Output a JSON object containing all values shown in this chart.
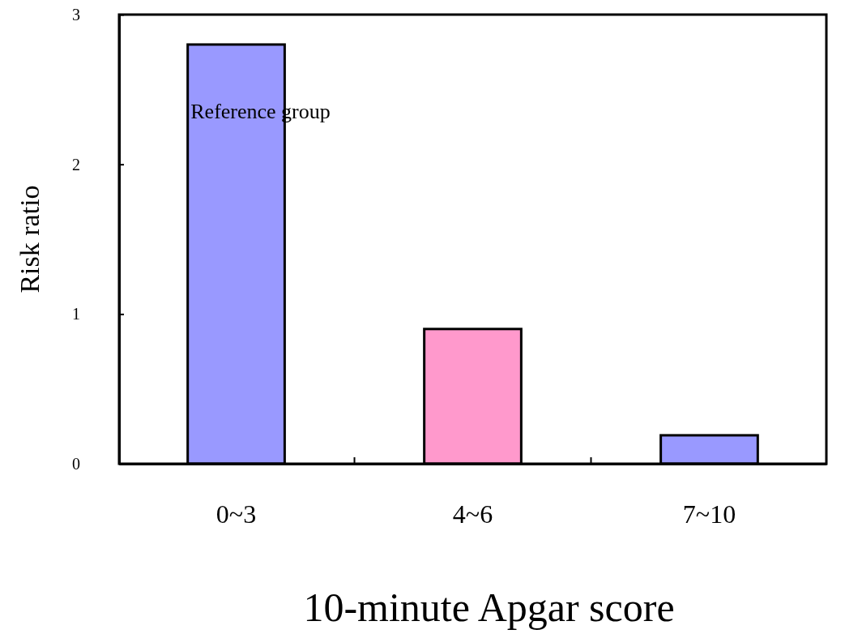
{
  "chart_data": {
    "type": "bar",
    "xlabel": "10-minute Apgar score",
    "ylabel": "Risk ratio",
    "categories": [
      "0~3",
      "4~6",
      "7~10"
    ],
    "values": [
      2.8,
      0.9,
      0.19
    ],
    "colors": [
      "#9999ff",
      "#ff99cc",
      "#9999ff"
    ],
    "ylim": [
      0,
      3
    ],
    "yticks": [
      0,
      1,
      2,
      3
    ],
    "grid": false,
    "annotations": [
      "Reference group"
    ]
  }
}
